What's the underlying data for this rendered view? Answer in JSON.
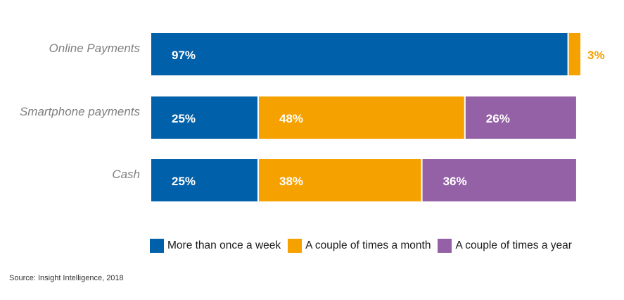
{
  "chart_data": {
    "type": "bar",
    "orientation": "horizontal",
    "stacked": true,
    "categories": [
      "Online Payments",
      "Smartphone payments",
      "Cash"
    ],
    "series": [
      {
        "name": "More than once a week",
        "values": [
          97,
          25,
          25
        ],
        "labels": [
          "97%",
          "25%",
          "25%"
        ],
        "color": "#0060aa",
        "label_color": "#ffffff"
      },
      {
        "name": "A couple of times a month",
        "values": [
          3,
          48,
          38
        ],
        "labels": [
          "3%",
          "48%",
          "38%"
        ],
        "color": "#f5a100",
        "label_color": "#ffffff"
      },
      {
        "name": "A couple of times a year",
        "values": [
          0,
          26,
          36
        ],
        "labels": [
          "",
          "26%",
          "36%"
        ],
        "color": "#9461a6",
        "label_color": "#ffffff"
      }
    ],
    "outside_label_color": "#f5a100",
    "legend_position": "bottom",
    "grid": false
  },
  "source": "Source: Insight Intelligence, 2018"
}
